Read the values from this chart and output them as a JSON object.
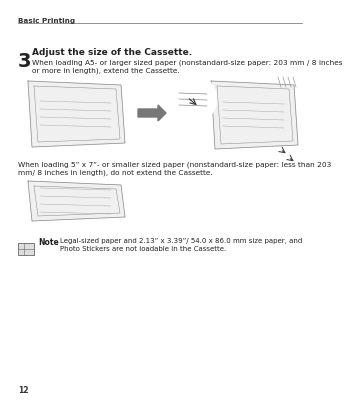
{
  "bg_color": "#ffffff",
  "header_text": "Basic Printing",
  "step_number": "3",
  "step_title": "Adjust the size of the Cassette.",
  "para1_line1": "When loading A5- or larger sized paper (nonstandard-size paper: 203 mm / 8 inches",
  "para1_line2": "or more in length), extend the Cassette.",
  "para2_line1": "When loading 5” x 7”- or smaller sized paper (nonstandard-size paper: less than 203",
  "para2_line2": "mm/ 8 inches in length), do not extend the Cassette.",
  "note_label": "Note",
  "note_text_line1": "Legal-sized paper and 2.13” x 3.39”/ 54.0 x 86.0 mm size paper, and",
  "note_text_line2": "Photo Stickers are not loadable in the Cassette.",
  "page_number": "12",
  "text_color": "#222222",
  "header_color": "#333333",
  "line_color": "#666666",
  "light_gray": "#d8d8d8",
  "mid_gray": "#aaaaaa",
  "tray_fill": "#f0f0f0",
  "tray_edge": "#888888"
}
